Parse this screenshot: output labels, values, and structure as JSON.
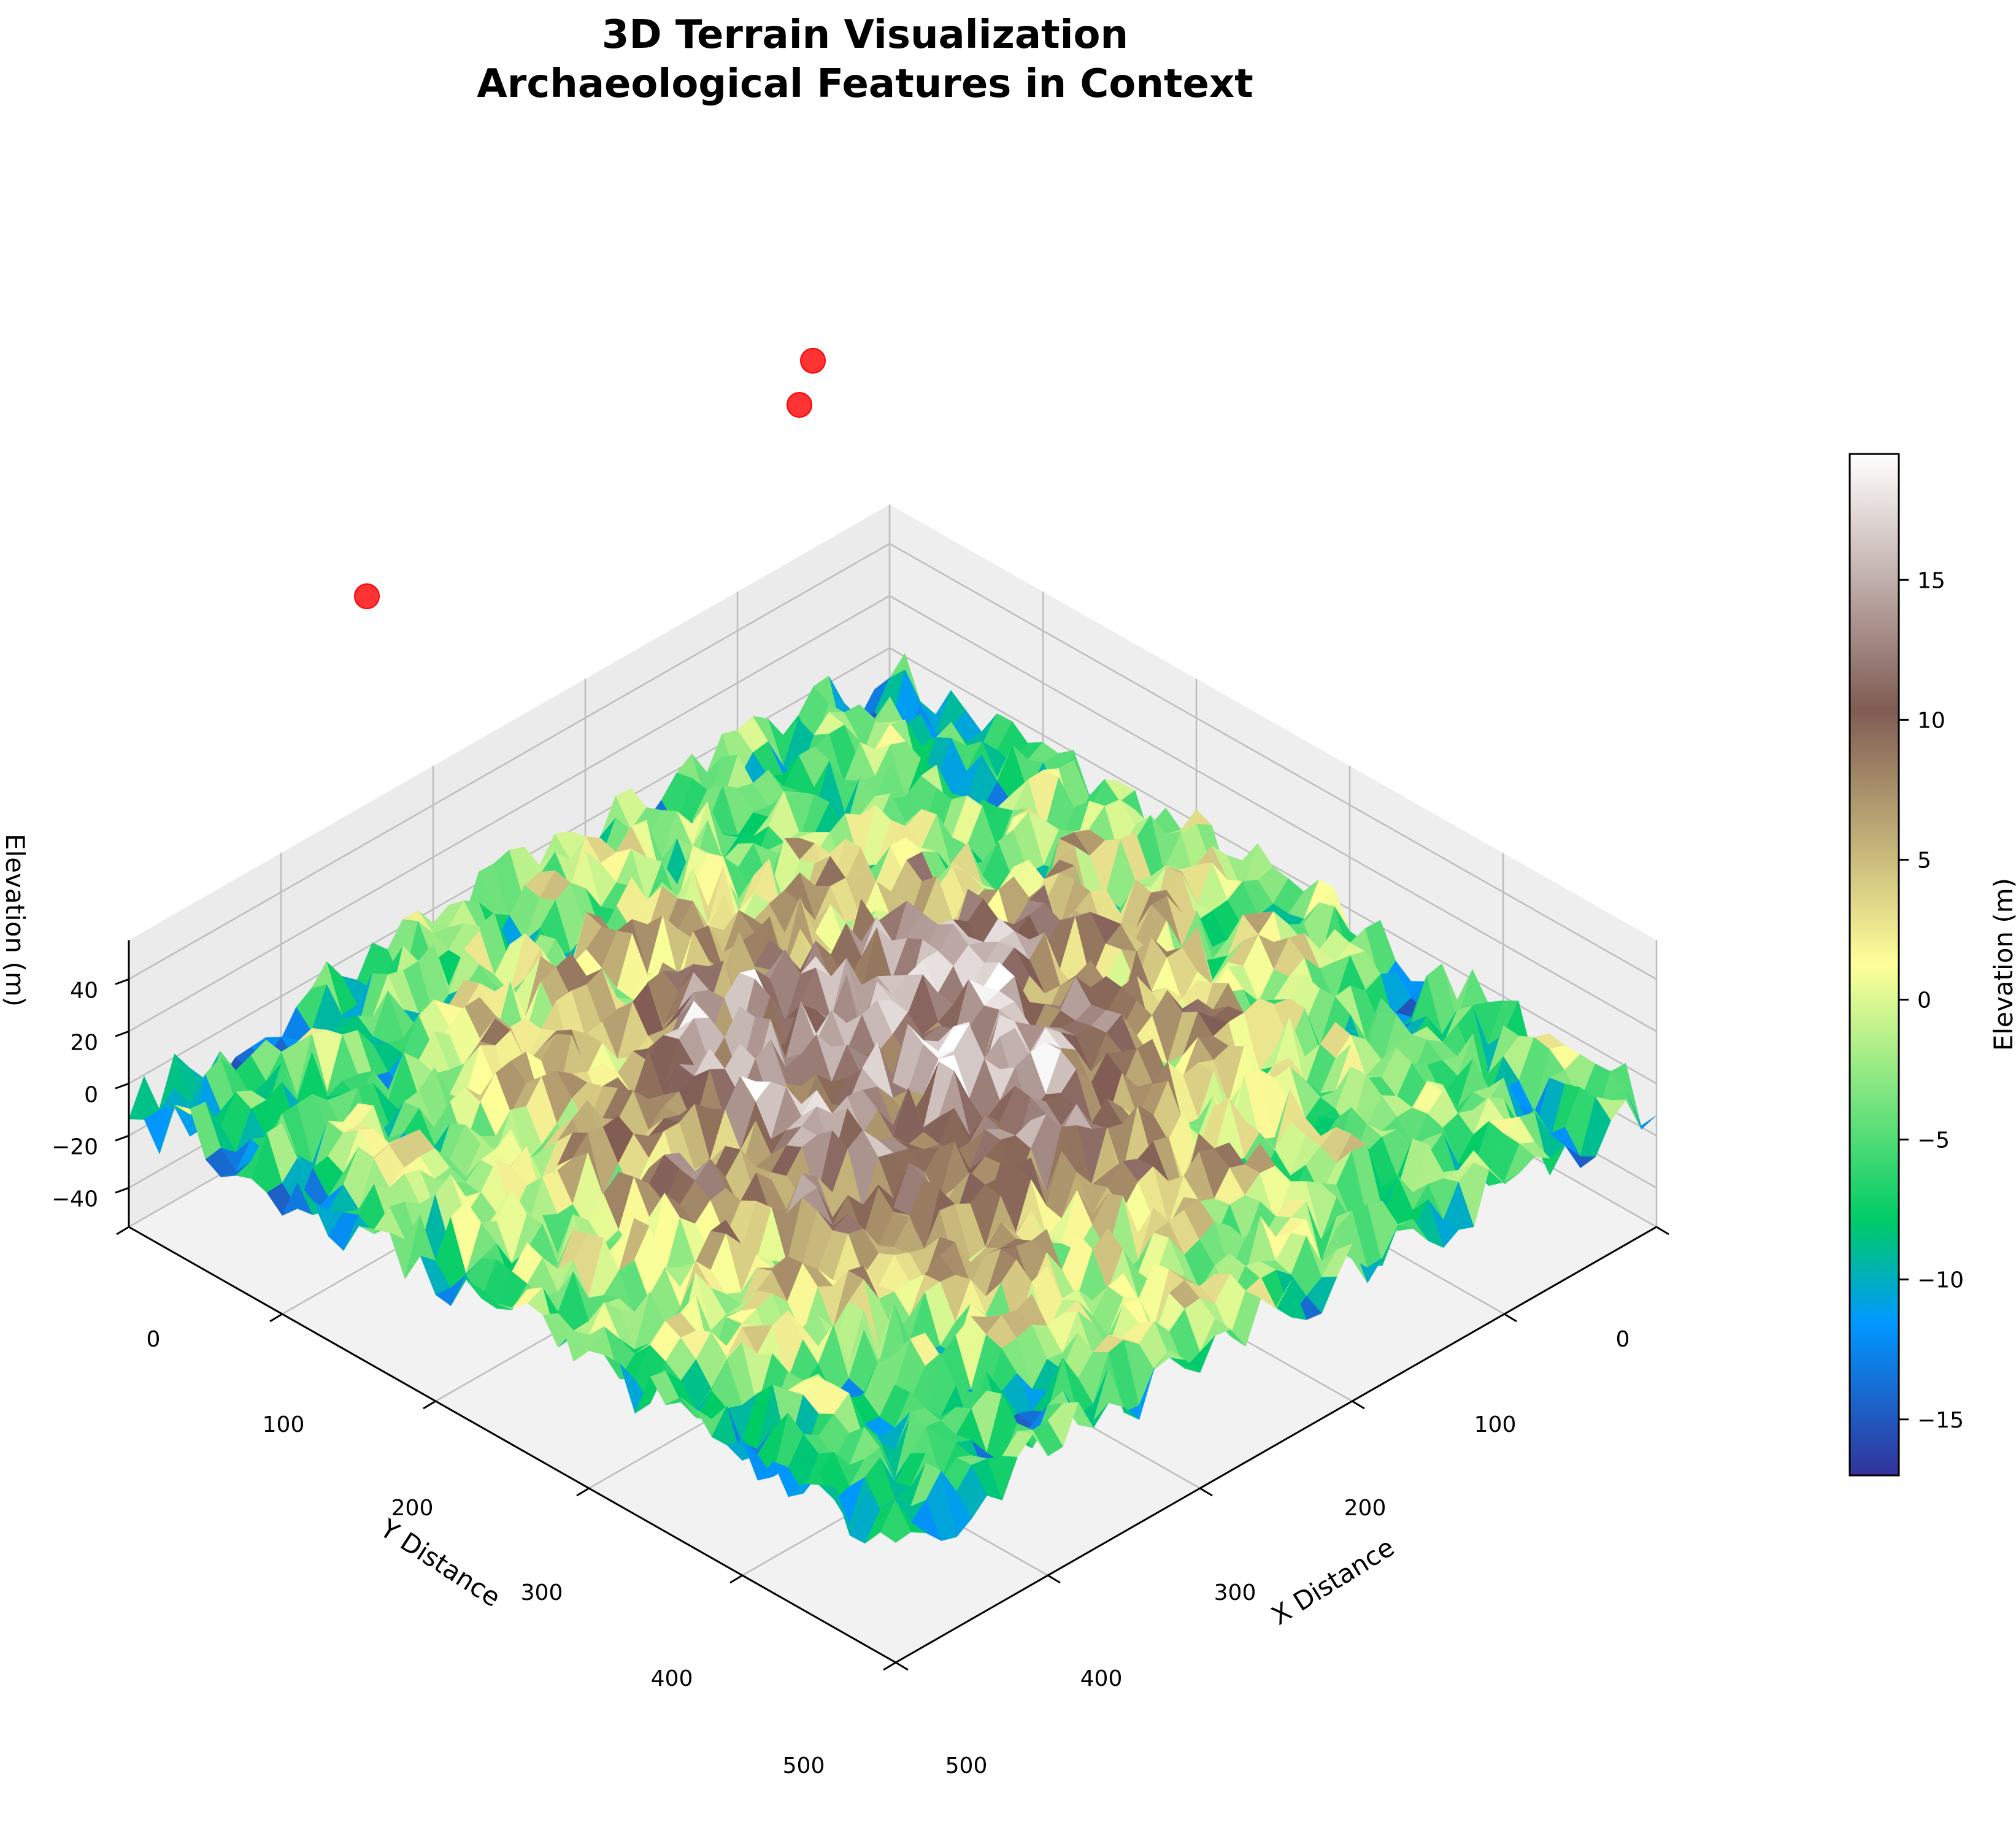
{
  "chart_data": {
    "type": "surface3d",
    "title_line1": "3D Terrain Visualization",
    "title_line2": "Archaeological Features in Context",
    "xlabel": "X Distance",
    "ylabel": "Y Distance",
    "zlabel": "Elevation (m)",
    "xlim": [
      0,
      500
    ],
    "ylim": [
      0,
      500
    ],
    "zlim": [
      -55,
      55
    ],
    "x_ticks": [
      "0",
      "100",
      "200",
      "300",
      "400",
      "500"
    ],
    "y_ticks": [
      "0",
      "100",
      "200",
      "300",
      "400",
      "500"
    ],
    "z_ticks": [
      "−40",
      "−20",
      "0",
      "20",
      "40"
    ],
    "z_tick_values": [
      -40,
      -20,
      0,
      20,
      40
    ],
    "colorbar": {
      "label": "Elevation (m)",
      "range": [
        -17,
        19.5
      ],
      "ticks": [
        "−15",
        "−10",
        "−5",
        "0",
        "5",
        "10",
        "15"
      ],
      "tick_values": [
        -15,
        -10,
        -5,
        0,
        5,
        10,
        15
      ]
    },
    "colormap": "terrain",
    "grid": true,
    "surface": {
      "description_free": true,
      "center_peak_elevation": 15,
      "edge_elevation": -10,
      "noise_amplitude": 12
    },
    "features": [
      {
        "x": 0,
        "y": 500,
        "z": 55
      },
      {
        "x": 0,
        "y": 500,
        "z": 48
      },
      {
        "x": 0,
        "y": 50,
        "z": 50
      }
    ],
    "feature_color": "#ff0000"
  }
}
